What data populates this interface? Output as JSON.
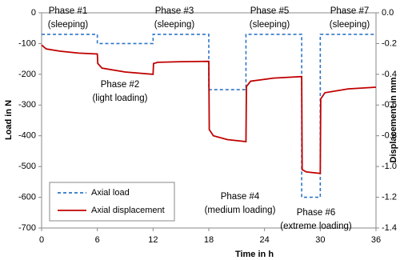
{
  "chart_data": {
    "type": "line",
    "x_label": "Time in h",
    "y_label": "Load in N",
    "y2_label": "Displacement in mm",
    "xlim": [
      0,
      36
    ],
    "xticks": [
      0,
      6,
      12,
      18,
      24,
      30,
      36
    ],
    "ylim": [
      -700,
      0
    ],
    "yticks": [
      0,
      -100,
      -200,
      -300,
      -400,
      -500,
      -600,
      -700
    ],
    "y2lim": [
      -1.4,
      0
    ],
    "y2ticks": [
      {
        "value": 0,
        "label": "0.0"
      },
      -0.2,
      -0.4,
      -0.6,
      -0.8,
      {
        "value": -1,
        "label": "-1.0"
      },
      -1.2,
      -1.4
    ],
    "series": [
      {
        "name": "Axial load",
        "color": "#2e75c8",
        "dashed": true,
        "x": [
          0,
          6,
          6,
          12,
          12,
          18,
          18,
          22,
          22,
          28,
          28,
          30,
          30,
          36
        ],
        "values": [
          -70,
          -70,
          -100,
          -100,
          -70,
          -70,
          -250,
          -250,
          -70,
          -70,
          -600,
          -600,
          -70,
          -70
        ]
      },
      {
        "name": "Axial displacement",
        "color": "#c00000",
        "axis": "y2",
        "x": [
          0,
          0.5,
          2,
          4,
          6,
          6.05,
          6.5,
          9,
          12,
          12.05,
          12.5,
          15,
          18,
          18.05,
          18.5,
          20,
          22,
          22.05,
          22.5,
          25,
          28,
          28.05,
          28.5,
          30,
          30.05,
          30.5,
          33,
          36
        ],
        "values": [
          -0.21,
          -0.235,
          -0.25,
          -0.262,
          -0.268,
          -0.33,
          -0.36,
          -0.385,
          -0.4,
          -0.33,
          -0.322,
          -0.318,
          -0.316,
          -0.76,
          -0.8,
          -0.825,
          -0.838,
          -0.48,
          -0.445,
          -0.425,
          -0.415,
          -1.02,
          -1.035,
          -1.045,
          -0.56,
          -0.52,
          -0.495,
          -0.484
        ]
      }
    ],
    "annotations": [
      [
        "Phase #1",
        "(sleeping)"
      ],
      [
        "Phase #2",
        "(light loading)"
      ],
      [
        "Phase #3",
        "(sleeping)"
      ],
      [
        "Phase #4",
        "(medium loading)"
      ],
      [
        "Phase #5",
        "(sleeping)"
      ],
      [
        "Phase #6",
        "(extreme loading)"
      ],
      [
        "Phase #7",
        "(sleeping)"
      ]
    ],
    "legend": "lower left"
  }
}
